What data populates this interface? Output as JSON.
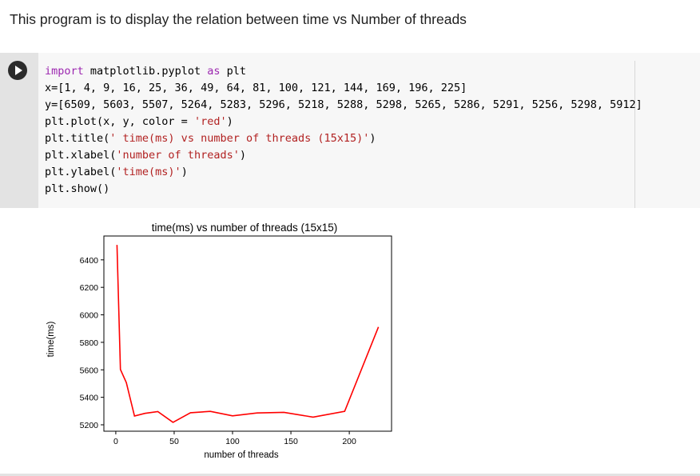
{
  "heading": "This program is to display the relation between time vs Number of threads",
  "code": {
    "line1": {
      "kw1": "import",
      "mod": " matplotlib.pyplot ",
      "kw2": "as",
      "rest": " plt"
    },
    "line2": "x=[1, 4, 9, 16, 25, 36, 49, 64, 81, 100, 121, 144, 169, 196, 225]",
    "line3": "y=[6509, 5603, 5507, 5264, 5283, 5296, 5218, 5288, 5298, 5265, 5286, 5291, 5256, 5298, 5912]",
    "line4": {
      "pre": "plt.plot(x, y, color = ",
      "str": "'red'",
      "post": ")"
    },
    "line5": {
      "pre": "plt.title(",
      "str": "' time(ms) vs number of threads (15x15)'",
      "post": ")"
    },
    "line6": {
      "pre": "plt.xlabel(",
      "str": "'number of threads'",
      "post": ")"
    },
    "line7": {
      "pre": "plt.ylabel(",
      "str": "'time(ms)'",
      "post": ")"
    },
    "line8": "plt.show()"
  },
  "chart_data": {
    "type": "line",
    "title": "time(ms) vs number of threads (15x15)",
    "xlabel": "number of threads",
    "ylabel": "time(ms)",
    "x": [
      1,
      4,
      9,
      16,
      25,
      36,
      49,
      64,
      81,
      100,
      121,
      144,
      169,
      196,
      225
    ],
    "series": [
      {
        "values": [
          6509,
          5603,
          5507,
          5264,
          5283,
          5296,
          5218,
          5288,
          5298,
          5265,
          5286,
          5291,
          5256,
          5298,
          5912
        ],
        "color": "#ff0000"
      }
    ],
    "xticks": [
      0,
      50,
      100,
      150,
      200
    ],
    "yticks": [
      5200,
      5400,
      5600,
      5800,
      6000,
      6200,
      6400
    ],
    "xlim": [
      -10.2,
      236.2
    ],
    "ylim": [
      5153.5,
      6573.5
    ],
    "grid": false
  }
}
